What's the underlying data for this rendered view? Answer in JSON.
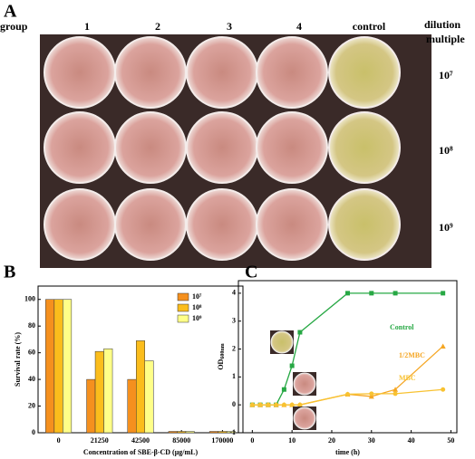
{
  "panel_a": {
    "label": "A",
    "row_header": "group",
    "columns": [
      "1",
      "2",
      "3",
      "4",
      "control"
    ],
    "dilution_header": [
      "dilution",
      "multiple"
    ],
    "rows": [
      "10⁷",
      "10⁸",
      "10⁹"
    ]
  },
  "chart_data": [
    {
      "panel": "B",
      "type": "bar",
      "ylabel": "Survival rate (%)",
      "xlabel": "Concentration of SBE-β-CD (μg/mL)",
      "categories": [
        "0",
        "21250",
        "42500",
        "85000",
        "170000"
      ],
      "series": [
        {
          "name": "10⁷",
          "color": "#f5901e",
          "values": [
            100,
            40,
            40,
            1,
            1
          ]
        },
        {
          "name": "10⁸",
          "color": "#fbbd1c",
          "values": [
            100,
            61,
            69,
            1,
            1
          ]
        },
        {
          "name": "10⁹",
          "color": "#ffff88",
          "values": [
            100,
            63,
            54,
            1,
            1
          ]
        }
      ],
      "ylim": [
        0,
        110
      ],
      "yticks": [
        0,
        20,
        40,
        60,
        80,
        100
      ],
      "legend": "top-right"
    },
    {
      "panel": "C",
      "type": "line",
      "ylabel": {
        "text": "OD",
        "subscript": "600nm"
      },
      "xlabel": "time (h)",
      "x": [
        0,
        2,
        4,
        6,
        8,
        10,
        12,
        24,
        30,
        36,
        48
      ],
      "series": [
        {
          "name": "Control",
          "color": "#27a844",
          "marker": "square",
          "values": [
            0,
            0,
            0,
            0,
            0.55,
            1.4,
            2.6,
            4,
            4,
            4,
            4
          ]
        },
        {
          "name": "1/2MBC",
          "color": "#f5a623",
          "marker": "triangle",
          "values": [
            0,
            0,
            0,
            0,
            0,
            0,
            0,
            0.38,
            0.3,
            0.55,
            2.1
          ]
        },
        {
          "name": "MBC",
          "color": "#f8c231",
          "marker": "circle",
          "values": [
            0,
            0,
            0,
            0,
            0,
            0,
            0,
            0.38,
            0.4,
            0.4,
            0.55
          ]
        }
      ],
      "xlim": [
        -3.5,
        51.5
      ],
      "xticks": [
        0,
        10,
        20,
        30,
        40,
        50
      ],
      "ylim": [
        -1,
        4.45
      ],
      "yticks": [
        -1,
        0,
        1,
        2,
        3,
        4
      ]
    }
  ]
}
